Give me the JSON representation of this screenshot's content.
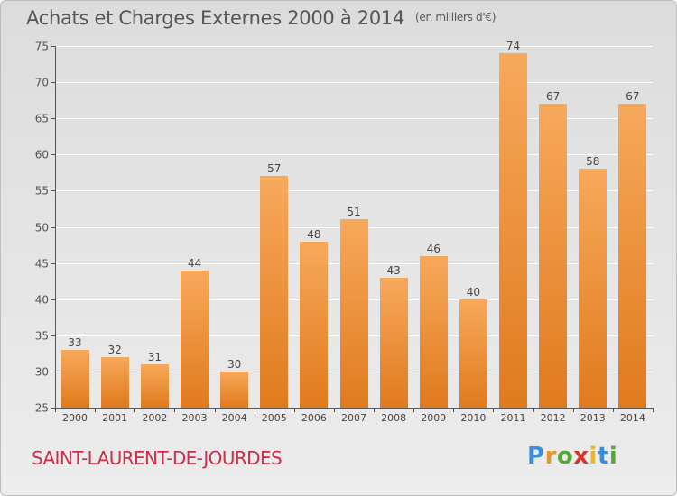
{
  "header": {
    "title": "Achats et Charges Externes 2000 à 2014",
    "subtitle": "(en milliers d'€)"
  },
  "footer": {
    "location": "SAINT-LAURENT-DE-JOURDES",
    "logo_text": "Proxiti"
  },
  "colors": {
    "bar_light": "#f7a95a",
    "bar_dark": "#e07a1e",
    "location_text": "#cc2e4c",
    "grid": "#ffffff",
    "axis": "#555555"
  },
  "chart_data": {
    "type": "bar",
    "title": "Achats et Charges Externes 2000 à 2014",
    "subtitle": "(en milliers d'€)",
    "xlabel": "",
    "ylabel": "",
    "categories": [
      "2000",
      "2001",
      "2002",
      "2003",
      "2004",
      "2005",
      "2006",
      "2007",
      "2008",
      "2009",
      "2010",
      "2011",
      "2012",
      "2013",
      "2014"
    ],
    "values": [
      33,
      32,
      31,
      44,
      30,
      57,
      48,
      51,
      43,
      46,
      40,
      74,
      67,
      58,
      67
    ],
    "ylim": [
      25,
      75
    ],
    "yticks": [
      25,
      30,
      35,
      40,
      45,
      50,
      55,
      60,
      65,
      70,
      75
    ],
    "grid": true,
    "data_labels": true
  }
}
